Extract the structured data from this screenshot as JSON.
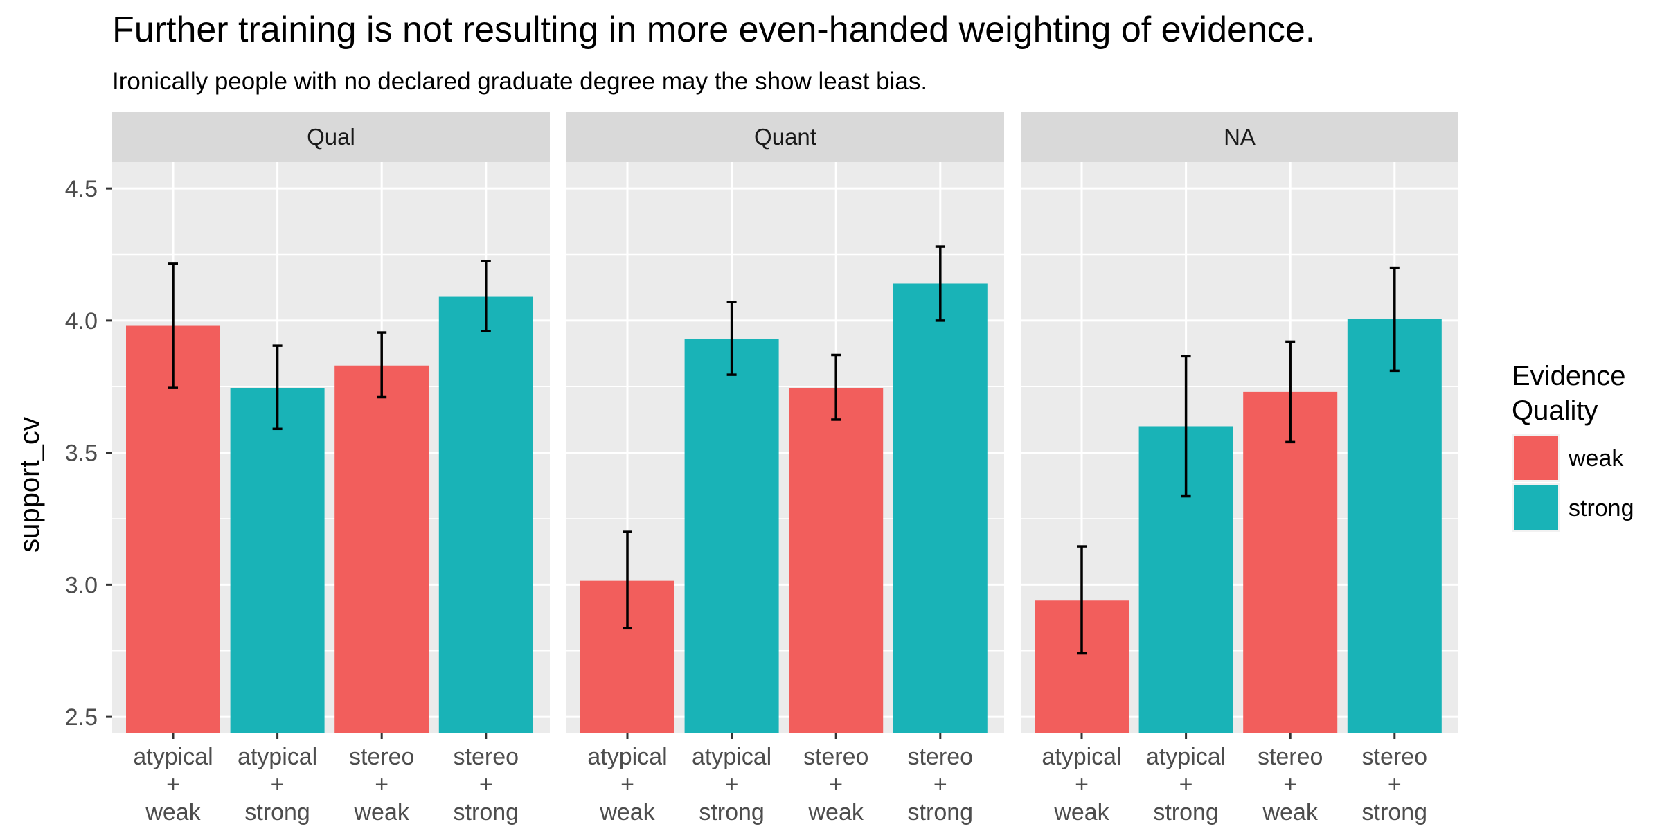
{
  "chart_data": {
    "type": "bar",
    "title": "Further training is not resulting in more even-handed weighting of evidence.",
    "subtitle": "Ironically people with no declared graduate degree may the show least bias.",
    "xlabel": "",
    "ylabel": "support_cv",
    "ylim": [
      2.44,
      4.6
    ],
    "yticks": [
      "2.5",
      "3.0",
      "3.5",
      "4.0",
      "4.5"
    ],
    "grid": true,
    "legend": {
      "title": "Evidence Quality",
      "position": "right",
      "entries": [
        {
          "label": "weak",
          "color": "#F25E5C"
        },
        {
          "label": "strong",
          "color": "#19B3B7"
        }
      ]
    },
    "panels": [
      {
        "strip": "Qual",
        "categories": [
          {
            "lines": [
              "atypical",
              "+",
              "weak"
            ],
            "quality": "weak",
            "value": 3.98,
            "ci": [
              3.745,
              4.215
            ]
          },
          {
            "lines": [
              "atypical",
              "+",
              "strong"
            ],
            "quality": "strong",
            "value": 3.745,
            "ci": [
              3.59,
              3.905
            ]
          },
          {
            "lines": [
              "stereo",
              "+",
              "weak"
            ],
            "quality": "weak",
            "value": 3.83,
            "ci": [
              3.71,
              3.955
            ]
          },
          {
            "lines": [
              "stereo",
              "+",
              "strong"
            ],
            "quality": "strong",
            "value": 4.09,
            "ci": [
              3.96,
              4.225
            ]
          }
        ]
      },
      {
        "strip": "Quant",
        "categories": [
          {
            "lines": [
              "atypical",
              "+",
              "weak"
            ],
            "quality": "weak",
            "value": 3.015,
            "ci": [
              2.835,
              3.2
            ]
          },
          {
            "lines": [
              "atypical",
              "+",
              "strong"
            ],
            "quality": "strong",
            "value": 3.93,
            "ci": [
              3.795,
              4.07
            ]
          },
          {
            "lines": [
              "stereo",
              "+",
              "weak"
            ],
            "quality": "weak",
            "value": 3.745,
            "ci": [
              3.625,
              3.87
            ]
          },
          {
            "lines": [
              "stereo",
              "+",
              "strong"
            ],
            "quality": "strong",
            "value": 4.14,
            "ci": [
              4.0,
              4.28
            ]
          }
        ]
      },
      {
        "strip": "NA",
        "categories": [
          {
            "lines": [
              "atypical",
              "+",
              "weak"
            ],
            "quality": "weak",
            "value": 2.94,
            "ci": [
              2.74,
              3.145
            ]
          },
          {
            "lines": [
              "atypical",
              "+",
              "strong"
            ],
            "quality": "strong",
            "value": 3.6,
            "ci": [
              3.335,
              3.865
            ]
          },
          {
            "lines": [
              "stereo",
              "+",
              "weak"
            ],
            "quality": "weak",
            "value": 3.73,
            "ci": [
              3.54,
              3.92
            ]
          },
          {
            "lines": [
              "stereo",
              "+",
              "strong"
            ],
            "quality": "strong",
            "value": 4.005,
            "ci": [
              3.81,
              4.2
            ]
          }
        ]
      }
    ]
  }
}
